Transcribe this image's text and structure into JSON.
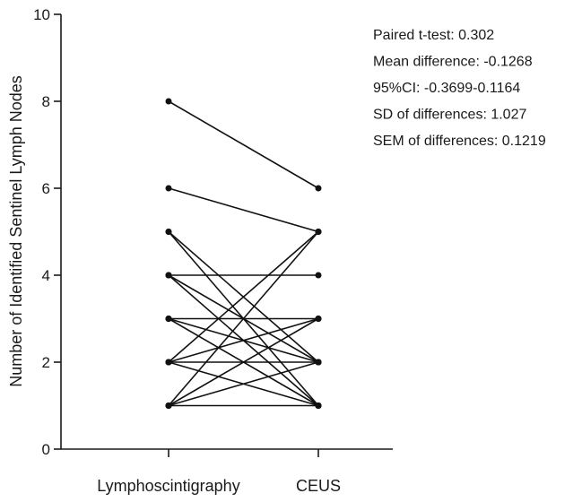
{
  "chart_data": {
    "type": "line",
    "title": "",
    "xlabel": "",
    "ylabel": "Number of Identified Sentinel Lymph Nodes",
    "categories": [
      "Lymphoscintigraphy",
      "CEUS"
    ],
    "ylim": [
      0,
      10
    ],
    "yticks": [
      "0",
      "2",
      "4",
      "6",
      "8",
      "10"
    ],
    "grid": false,
    "legend": "none",
    "pairs": [
      [
        8,
        6
      ],
      [
        6,
        5
      ],
      [
        5,
        2
      ],
      [
        5,
        1
      ],
      [
        4,
        4
      ],
      [
        4,
        2
      ],
      [
        4,
        1
      ],
      [
        3,
        3
      ],
      [
        3,
        2
      ],
      [
        3,
        1
      ],
      [
        2,
        5
      ],
      [
        2,
        3
      ],
      [
        2,
        2
      ],
      [
        2,
        1
      ],
      [
        1,
        5
      ],
      [
        1,
        3
      ],
      [
        1,
        2
      ],
      [
        1,
        1
      ]
    ],
    "annotations": [
      "Paired t-test: 0.302",
      "Mean difference: -0.1268",
      "95%CI: -0.3699-0.1164",
      "SD of differences: 1.027",
      "SEM of differences: 0.1219"
    ],
    "colors": {
      "line": "#111111",
      "axis": "#1a1a1a"
    }
  }
}
